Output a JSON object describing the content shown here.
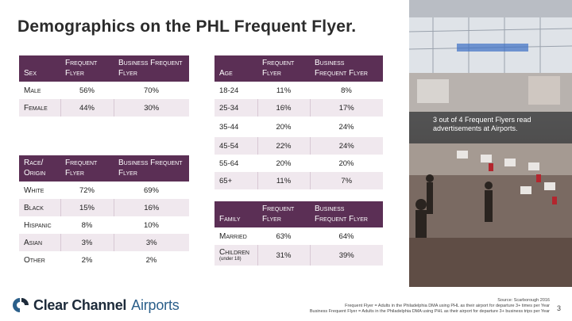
{
  "title": "Demographics on the PHL Frequent Flyer.",
  "sex_table": {
    "headers": [
      "Sex",
      "Frequent Flyer",
      "Business Frequent Flyer"
    ],
    "rows": [
      [
        "Male",
        "56%",
        "70%"
      ],
      [
        "Female",
        "44%",
        "30%"
      ]
    ]
  },
  "race_table": {
    "headers": [
      "Race/ Origin",
      "Frequent Flyer",
      "Business Frequent Flyer"
    ],
    "rows": [
      [
        "White",
        "72%",
        "69%"
      ],
      [
        "Black",
        "15%",
        "16%"
      ],
      [
        "Hispanic",
        "8%",
        "10%"
      ],
      [
        "Asian",
        "3%",
        "3%"
      ],
      [
        "Other",
        "2%",
        "2%"
      ]
    ]
  },
  "age_table": {
    "headers": [
      "Age",
      "Frequent Flyer",
      "Business Frequent Flyer"
    ],
    "rows": [
      [
        "18-24",
        "11%",
        "8%"
      ],
      [
        "25-34",
        "16%",
        "17%"
      ],
      [
        "35-44",
        "20%",
        "24%"
      ],
      [
        "45-54",
        "22%",
        "24%"
      ],
      [
        "55-64",
        "20%",
        "20%"
      ],
      [
        "65+",
        "11%",
        "7%"
      ]
    ]
  },
  "family_table": {
    "headers": [
      "Family",
      "Frequent Flyer",
      "Business Frequent Flyer"
    ],
    "rows": [
      [
        "Married",
        "63%",
        "64%"
      ],
      [
        "Children",
        "31%",
        "39%"
      ]
    ],
    "children_sub": "(under 18)"
  },
  "caption": "3 out of 4 Frequent Flyers read advertisements at Airports.",
  "logo": {
    "word1": "Clear Channel",
    "word2": "Airports",
    "icon": "clear-channel-logo-icon",
    "color": "#2b5f8a"
  },
  "footer": {
    "source": "Source: Scarborough 2016",
    "line1": "Frequent Flyer = Adults in the Philadelphia DMA using PHL as their airport for departure 3+ times per Year",
    "line2": "Business Frequent Flyer = Adults in the Philadelphia DMA using PHL as their airport for departure 3+ business trips per Year",
    "page": "3"
  },
  "colors": {
    "header": "#5b2f55",
    "shade": "#f0e8ee"
  }
}
